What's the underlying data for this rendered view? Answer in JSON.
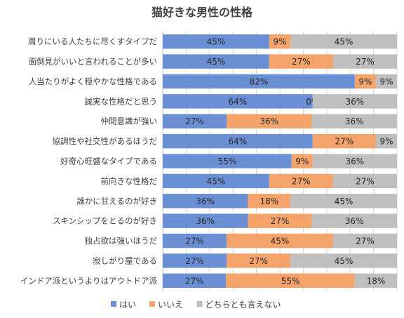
{
  "chart_data": {
    "type": "bar",
    "orientation": "horizontal",
    "stacked": "percent",
    "title": "猫好きな男性の性格",
    "categories": [
      "周りにいる人たちに尽くすタイプだ",
      "面倒見がいいと言われることが多い",
      "人当たりがよく穏やかな性格である",
      "誠実な性格だと思う",
      "仲間意識が強い",
      "協調性や社交性があるほうだ",
      "好奇心旺盛なタイプである",
      "前向きな性格だ",
      "誰かに甘えるのが好き",
      "スキンシップをとるのが好き",
      "独占欲は強いほうだ",
      "寂しがり屋である",
      "インドア派というよりはアウトドア派"
    ],
    "series": [
      {
        "name": "はい",
        "color": "#6b8fd4",
        "values": [
          45,
          45,
          82,
          64,
          27,
          64,
          55,
          45,
          36,
          36,
          27,
          27,
          27
        ]
      },
      {
        "name": "いいえ",
        "color": "#f4a46a",
        "values": [
          9,
          27,
          9,
          0,
          36,
          27,
          9,
          27,
          18,
          27,
          45,
          27,
          55
        ]
      },
      {
        "name": "どちらとも言えない",
        "color": "#bfbfbf",
        "values": [
          45,
          27,
          9,
          36,
          36,
          9,
          36,
          27,
          45,
          36,
          27,
          45,
          18
        ]
      }
    ],
    "value_suffix": "%",
    "grid": true,
    "legend_position": "bottom"
  }
}
